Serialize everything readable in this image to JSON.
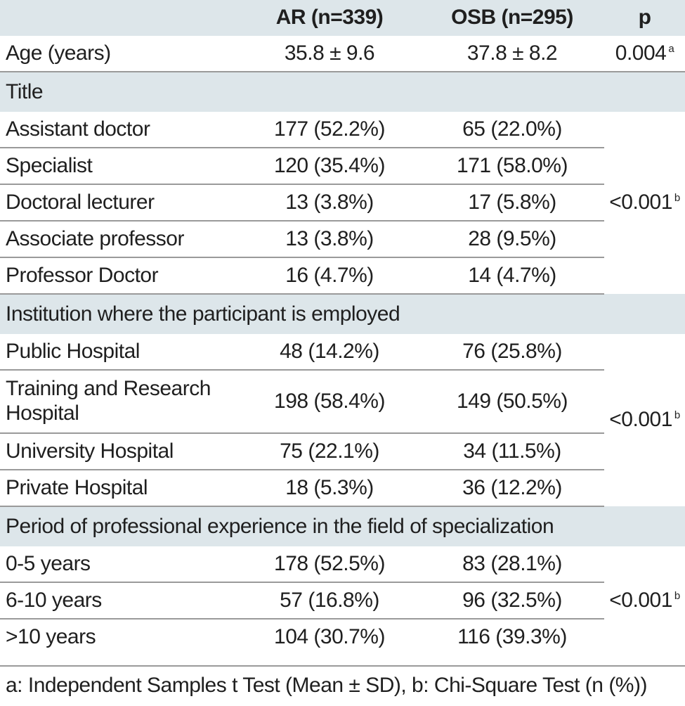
{
  "header": {
    "col_ar": "AR (n=339)",
    "col_osb": "OSB (n=295)",
    "col_p": "p"
  },
  "age": {
    "label": "Age (years)",
    "ar": "35.8 ± 9.6",
    "osb": "37.8 ± 8.2",
    "p": "0.004",
    "p_note": "a"
  },
  "title_section": {
    "heading": "Title",
    "p": "<0.001",
    "p_note": "b",
    "rows": [
      {
        "label": "Assistant doctor",
        "ar": "177 (52.2%)",
        "osb": "65 (22.0%)"
      },
      {
        "label": "Specialist",
        "ar": "120 (35.4%)",
        "osb": "171 (58.0%)"
      },
      {
        "label": "Doctoral lecturer",
        "ar": "13 (3.8%)",
        "osb": "17 (5.8%)"
      },
      {
        "label": "Associate professor",
        "ar": "13 (3.8%)",
        "osb": "28 (9.5%)"
      },
      {
        "label": "Professor Doctor",
        "ar": "16 (4.7%)",
        "osb": "14 (4.7%)"
      }
    ]
  },
  "institution_section": {
    "heading": "Institution where the participant is employed",
    "p": "<0.001",
    "p_note": "b",
    "rows": [
      {
        "label": "Public Hospital",
        "ar": "48 (14.2%)",
        "osb": "76 (25.8%)"
      },
      {
        "label": "Training and Research Hospital",
        "ar": "198 (58.4%)",
        "osb": "149 (50.5%)"
      },
      {
        "label": "University Hospital",
        "ar": "75 (22.1%)",
        "osb": "34 (11.5%)"
      },
      {
        "label": "Private Hospital",
        "ar": "18 (5.3%)",
        "osb": "36 (12.2%)"
      }
    ]
  },
  "experience_section": {
    "heading": "Period of professional experience in the field of specialization",
    "p": "<0.001",
    "p_note": "b",
    "rows": [
      {
        "label": "0-5 years",
        "ar": "178 (52.5%)",
        "osb": "83 (28.1%)"
      },
      {
        "label": "6-10 years",
        "ar": "57 (16.8%)",
        "osb": "96 (32.5%)"
      },
      {
        "label": ">10 years",
        "ar": "104 (30.7%)",
        "osb": "116 (39.3%)"
      }
    ]
  },
  "footnote": "a: Independent Samples t Test (Mean ± SD), b: Chi-Square Test (n (%))"
}
